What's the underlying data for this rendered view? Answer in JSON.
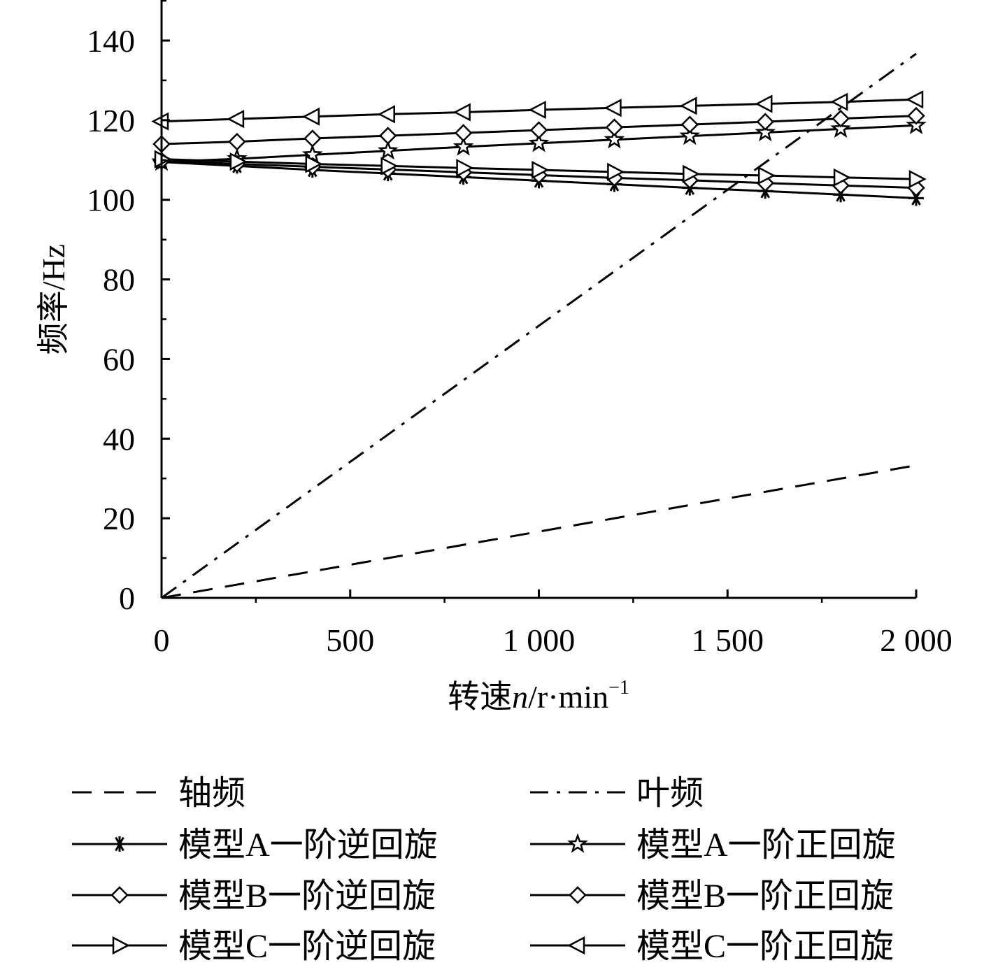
{
  "chart_data": {
    "type": "line",
    "xlabel": {
      "prefix": "转速",
      "var": "n",
      "unit": "/r·min",
      "sup": "−1"
    },
    "ylabel": "频率/Hz",
    "xlim": [
      0,
      2000
    ],
    "ylim": [
      0,
      150
    ],
    "x_ticks": [
      0,
      500,
      1000,
      1500,
      2000
    ],
    "x_tick_labels": [
      "0",
      "500",
      "1 000",
      "1 500",
      "2 000"
    ],
    "y_ticks": [
      0,
      20,
      40,
      60,
      80,
      100,
      120,
      140
    ],
    "y_tick_labels": [
      "0",
      "20",
      "40",
      "60",
      "80",
      "100",
      "120",
      "140"
    ],
    "grid": false,
    "legend_position": "bottom",
    "series": [
      {
        "name": "轴频",
        "style": "dashed",
        "marker": "none",
        "x": [
          0,
          2000
        ],
        "y": [
          0,
          33.3
        ]
      },
      {
        "name": "叶频",
        "style": "dashdot",
        "marker": "none",
        "x": [
          0,
          2000
        ],
        "y": [
          0,
          136.7
        ]
      },
      {
        "name": "模型A一阶逆回旋",
        "style": "solid",
        "marker": "asterisk",
        "x": [
          0,
          200,
          400,
          600,
          800,
          1000,
          1200,
          1400,
          1600,
          1800,
          2000
        ],
        "y": [
          109.5,
          108.5,
          107.5,
          106.6,
          105.7,
          104.8,
          103.9,
          103.0,
          102.2,
          101.3,
          100.4
        ]
      },
      {
        "name": "模型A一阶正回旋",
        "style": "solid",
        "marker": "star",
        "x": [
          0,
          200,
          400,
          600,
          800,
          1000,
          1200,
          1400,
          1600,
          1800,
          2000
        ],
        "y": [
          109.5,
          110.3,
          111.3,
          112.3,
          113.3,
          114.2,
          115.1,
          116.0,
          116.9,
          117.8,
          118.7
        ]
      },
      {
        "name": "模型B一阶逆回旋",
        "style": "solid",
        "marker": "diamond",
        "x": [
          0,
          200,
          400,
          600,
          800,
          1000,
          1200,
          1400,
          1600,
          1800,
          2000
        ],
        "y": [
          109.8,
          109.0,
          108.3,
          107.6,
          106.9,
          106.2,
          105.5,
          104.9,
          104.2,
          103.6,
          103.0
        ]
      },
      {
        "name": "模型B一阶正回旋",
        "style": "solid",
        "marker": "diamond",
        "x": [
          0,
          200,
          400,
          600,
          800,
          1000,
          1200,
          1400,
          1600,
          1800,
          2000
        ],
        "y": [
          114.0,
          114.6,
          115.4,
          116.1,
          116.8,
          117.5,
          118.2,
          118.9,
          119.6,
          120.4,
          121.1
        ]
      },
      {
        "name": "模型C一阶逆回旋",
        "style": "solid",
        "marker": "triangle-right",
        "x": [
          0,
          200,
          400,
          600,
          800,
          1000,
          1200,
          1400,
          1600,
          1800,
          2000
        ],
        "y": [
          110.2,
          109.6,
          109.0,
          108.5,
          108.0,
          107.5,
          107.0,
          106.5,
          106.1,
          105.6,
          105.2
        ]
      },
      {
        "name": "模型C一阶正回旋",
        "style": "solid",
        "marker": "triangle-left",
        "x": [
          0,
          200,
          400,
          600,
          800,
          1000,
          1200,
          1400,
          1600,
          1800,
          2000
        ],
        "y": [
          119.7,
          120.3,
          120.9,
          121.5,
          122.0,
          122.6,
          123.1,
          123.6,
          124.1,
          124.6,
          125.2
        ]
      }
    ]
  }
}
